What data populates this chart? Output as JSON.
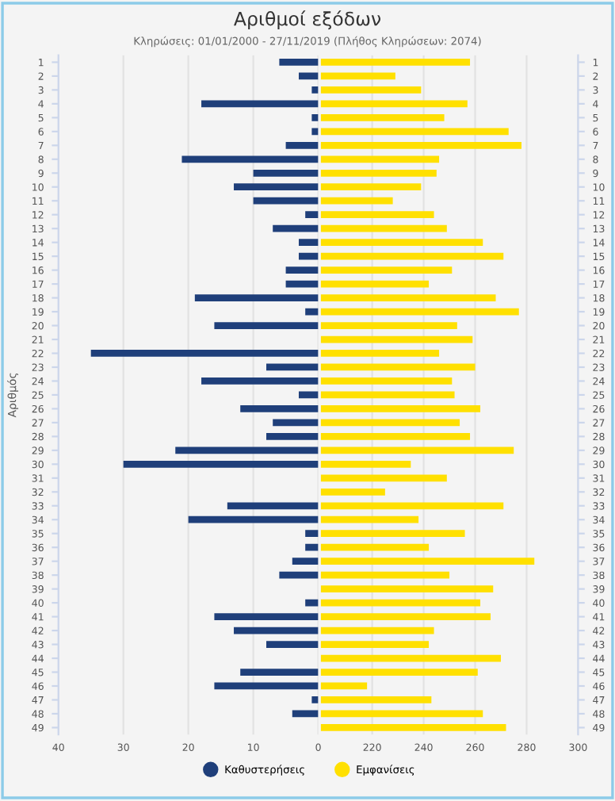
{
  "chart_data": [
    {
      "type": "bar",
      "orientation": "horizontal",
      "title": "Αριθμοί εξόδων",
      "subtitle": "Κληρώσεις: 01/01/2000 - 27/11/2019 (Πλήθος Κληρώσεων: 2074)",
      "ylabel": "Αριθμός",
      "categories": [
        "1",
        "2",
        "3",
        "4",
        "5",
        "6",
        "7",
        "8",
        "9",
        "10",
        "11",
        "12",
        "13",
        "14",
        "15",
        "16",
        "17",
        "18",
        "19",
        "20",
        "21",
        "22",
        "23",
        "24",
        "25",
        "26",
        "27",
        "28",
        "29",
        "30",
        "31",
        "32",
        "33",
        "34",
        "35",
        "36",
        "37",
        "38",
        "39",
        "40",
        "41",
        "42",
        "43",
        "44",
        "45",
        "46",
        "47",
        "48",
        "49"
      ],
      "series": [
        {
          "name": "Καθυστερήσεις",
          "color": "#1f3f7a",
          "values": [
            6,
            3,
            1,
            18,
            1,
            1,
            5,
            21,
            10,
            13,
            10,
            2,
            7,
            3,
            3,
            5,
            5,
            19,
            2,
            16,
            null,
            35,
            8,
            18,
            3,
            12,
            7,
            8,
            22,
            30,
            null,
            null,
            14,
            20,
            2,
            2,
            4,
            6,
            null,
            2,
            16,
            13,
            8,
            null,
            12,
            16,
            1,
            4,
            null
          ]
        }
      ],
      "xlim": [
        40,
        0
      ],
      "xticks": [
        40,
        30,
        20,
        10,
        0
      ],
      "grid": "x",
      "legend": "bottom"
    },
    {
      "type": "bar",
      "orientation": "horizontal",
      "categories": [
        "1",
        "2",
        "3",
        "4",
        "5",
        "6",
        "7",
        "8",
        "9",
        "10",
        "11",
        "12",
        "13",
        "14",
        "15",
        "16",
        "17",
        "18",
        "19",
        "20",
        "21",
        "22",
        "23",
        "24",
        "25",
        "26",
        "27",
        "28",
        "29",
        "30",
        "31",
        "32",
        "33",
        "34",
        "35",
        "36",
        "37",
        "38",
        "39",
        "40",
        "41",
        "42",
        "43",
        "44",
        "45",
        "46",
        "47",
        "48",
        "49"
      ],
      "series": [
        {
          "name": "Εμφανίσεις",
          "color": "#ffe000",
          "values": [
            258,
            229,
            239,
            257,
            248,
            273,
            278,
            246,
            245,
            239,
            228,
            244,
            249,
            263,
            271,
            251,
            242,
            268,
            277,
            253,
            259,
            246,
            260,
            251,
            252,
            262,
            254,
            258,
            275,
            235,
            249,
            225,
            271,
            238,
            256,
            242,
            283,
            250,
            267,
            262,
            266,
            244,
            242,
            270,
            261,
            218,
            243,
            263,
            272
          ]
        }
      ],
      "xlim": [
        200,
        300
      ],
      "xticks": [
        220,
        240,
        260,
        280,
        300
      ],
      "grid": "x",
      "legend": "bottom"
    }
  ]
}
